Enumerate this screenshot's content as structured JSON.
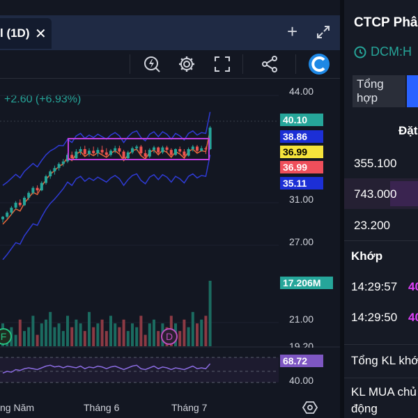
{
  "chart": {
    "tab_title": "l (1D)",
    "close_glyph": "✕",
    "add_glyph": "+",
    "icons": [
      "lightning-search-icon",
      "gear-icon",
      "fullscreen-icon",
      "share-icon",
      "logo-icon"
    ],
    "change_text": "+2.60 (+6.93%)",
    "price_axis": [
      "44.00",
      "31.00",
      "27.00",
      "21.00",
      "19.20"
    ],
    "labels": {
      "last_price": "40.10",
      "upper_band": "38.86",
      "ma": "36.99",
      "ma2": "36.99",
      "lower_band": "35.11",
      "volume": "17.206M",
      "rsi": "68.72",
      "rsi_axis": "40.00"
    },
    "label_colors": {
      "last_price": "#26a69a",
      "upper_band": "#1c2fd6",
      "ma": "#f5e33b",
      "ma2": "#ef4f5b",
      "lower_band": "#1c2fd6",
      "volume": "#26a69a",
      "rsi": "#7e57c2"
    },
    "time_axis": [
      "ng Năm",
      "Tháng 6",
      "Tháng 7"
    ],
    "markers": [
      "F",
      "D"
    ]
  },
  "chart_data": {
    "type": "candlestick",
    "series": [
      {
        "name": "price",
        "ohlc": [
          [
            29.0,
            29.4,
            28.6,
            29.3
          ],
          [
            29.3,
            30.0,
            29.1,
            29.8
          ],
          [
            29.8,
            30.6,
            29.5,
            30.4
          ],
          [
            30.4,
            31.2,
            30.2,
            31.0
          ],
          [
            31.0,
            31.4,
            30.5,
            30.7
          ],
          [
            30.7,
            31.8,
            30.6,
            31.6
          ],
          [
            31.6,
            32.4,
            31.3,
            32.2
          ],
          [
            32.2,
            33.0,
            32.0,
            32.8
          ],
          [
            32.8,
            33.1,
            32.2,
            32.5
          ],
          [
            32.5,
            33.6,
            32.4,
            33.4
          ],
          [
            33.4,
            34.4,
            33.2,
            34.2
          ],
          [
            34.2,
            35.0,
            33.9,
            34.8
          ],
          [
            34.8,
            35.5,
            34.4,
            35.2
          ],
          [
            35.2,
            35.9,
            34.9,
            35.7
          ],
          [
            35.7,
            36.3,
            35.4,
            36.0
          ],
          [
            36.0,
            37.0,
            35.8,
            36.8
          ],
          [
            36.8,
            37.2,
            36.1,
            36.4
          ],
          [
            36.4,
            37.5,
            36.2,
            37.2
          ],
          [
            37.2,
            37.8,
            36.8,
            37.5
          ],
          [
            37.5,
            37.9,
            36.7,
            36.9
          ],
          [
            36.9,
            37.6,
            36.6,
            37.3
          ],
          [
            37.3,
            37.8,
            36.8,
            37.0
          ],
          [
            37.0,
            37.7,
            36.6,
            37.4
          ],
          [
            37.4,
            37.9,
            36.9,
            37.1
          ],
          [
            37.1,
            37.6,
            36.5,
            36.8
          ],
          [
            36.8,
            37.5,
            36.6,
            37.3
          ],
          [
            37.3,
            37.9,
            37.0,
            37.6
          ],
          [
            37.6,
            37.9,
            37.0,
            37.2
          ],
          [
            37.2,
            37.4,
            36.1,
            36.4
          ],
          [
            36.4,
            37.3,
            36.2,
            37.1
          ],
          [
            37.1,
            37.8,
            36.9,
            37.6
          ],
          [
            37.6,
            38.0,
            37.3,
            37.8
          ],
          [
            37.8,
            38.0,
            36.8,
            37.0
          ],
          [
            37.0,
            37.4,
            36.3,
            36.6
          ],
          [
            36.6,
            37.6,
            36.4,
            37.4
          ],
          [
            37.4,
            37.9,
            37.0,
            37.7
          ],
          [
            37.7,
            37.8,
            36.9,
            37.1
          ],
          [
            37.1,
            37.9,
            36.9,
            37.7
          ],
          [
            37.7,
            37.9,
            37.1,
            37.4
          ],
          [
            37.4,
            37.6,
            36.6,
            36.8
          ],
          [
            36.8,
            37.6,
            36.7,
            37.5
          ],
          [
            37.5,
            37.8,
            37.0,
            37.2
          ],
          [
            37.2,
            37.5,
            36.5,
            36.7
          ],
          [
            36.7,
            37.7,
            36.6,
            37.5
          ],
          [
            37.5,
            38.0,
            37.2,
            37.8
          ],
          [
            37.8,
            38.0,
            37.1,
            37.3
          ],
          [
            37.3,
            37.9,
            37.2,
            37.6
          ],
          [
            37.6,
            37.8,
            36.9,
            37.5
          ],
          [
            37.5,
            40.3,
            37.4,
            40.1
          ]
        ]
      },
      {
        "name": "volume",
        "values": [
          6,
          4,
          5,
          3,
          7,
          4,
          5,
          8,
          3,
          6,
          7,
          9,
          5,
          6,
          4,
          8,
          5,
          7,
          6,
          4,
          9,
          5,
          6,
          7,
          4,
          8,
          6,
          5,
          7,
          4,
          6,
          5,
          8,
          3,
          6,
          7,
          4,
          6,
          5,
          8,
          6,
          4,
          7,
          5,
          9,
          6,
          7,
          8,
          17.2
        ]
      },
      {
        "name": "rsi",
        "values": [
          58,
          60,
          59,
          62,
          61,
          63,
          64,
          63,
          62,
          64,
          66,
          67,
          65,
          66,
          64,
          66,
          65,
          64,
          66,
          63,
          65,
          64,
          66,
          65,
          63,
          65,
          66,
          64,
          62,
          64,
          66,
          67,
          63,
          62,
          64,
          66,
          63,
          65,
          64,
          62,
          64,
          63,
          62,
          64,
          66,
          63,
          64,
          63,
          68.72
        ]
      }
    ],
    "ylim": [
      19.2,
      44.0
    ]
  },
  "info": {
    "company_name": "CTCP Phâ",
    "ticker": "DCM:H",
    "tab_overview": "Tổng hợp",
    "order_header": "Đặt",
    "orders": [
      "355.100",
      "743.000",
      "23.200"
    ],
    "match_header": "Khớp",
    "matches": [
      {
        "time": "14:29:57",
        "price": "40"
      },
      {
        "time": "14:29:50",
        "price": "40"
      }
    ],
    "summary": [
      "Tổng KL khớ",
      "KL MUA chủ động"
    ]
  }
}
